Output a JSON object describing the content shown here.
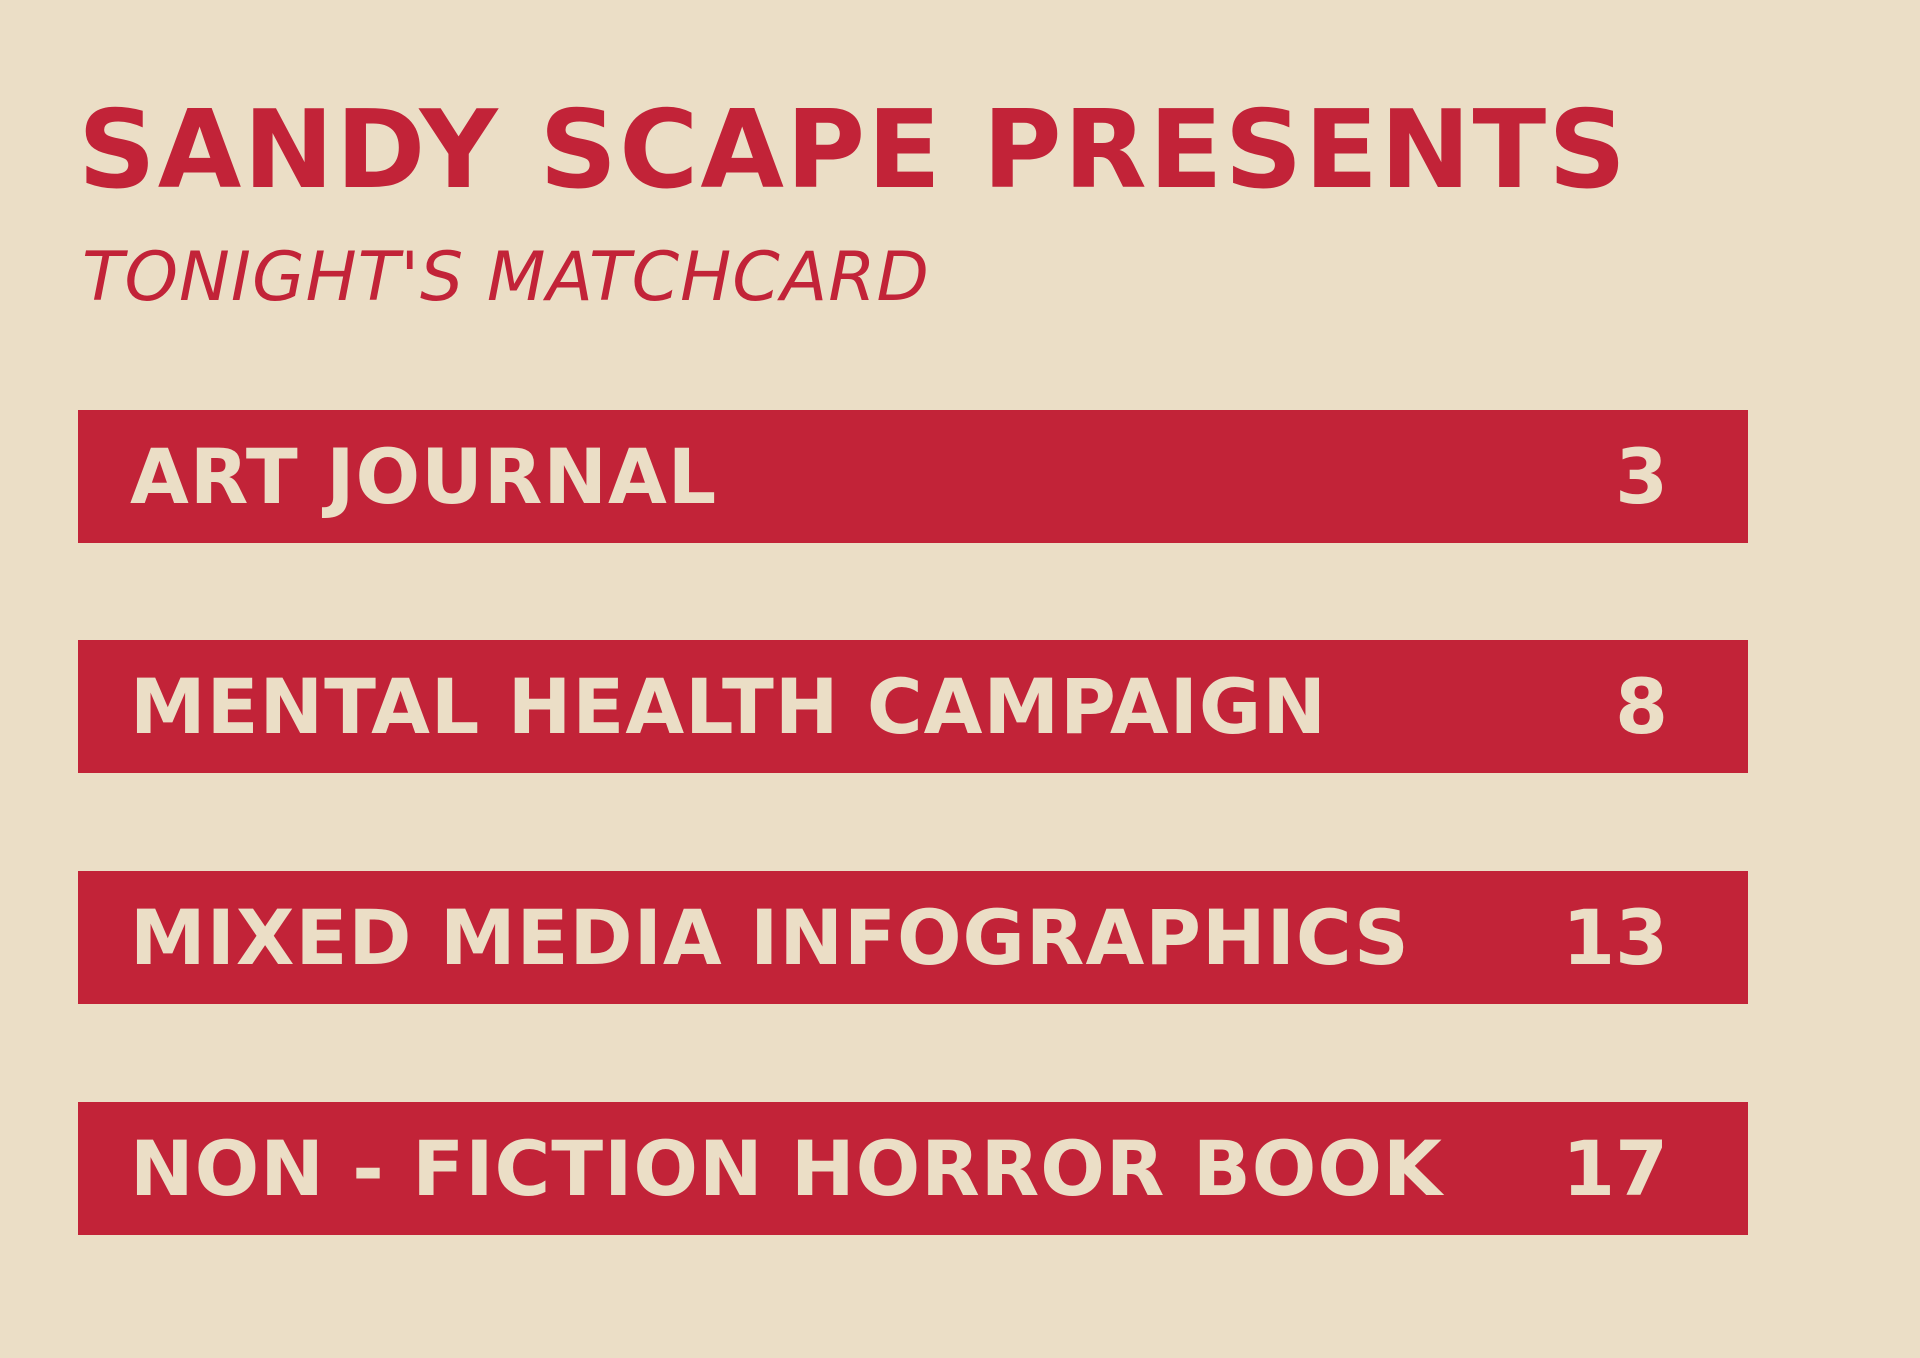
{
  "header": {
    "title": "SANDY SCAPE PRESENTS",
    "subtitle": "TONIGHT'S MATCHCARD"
  },
  "matches": [
    {
      "title": "ART JOURNAL",
      "number": "3"
    },
    {
      "title": "MENTAL HEALTH CAMPAIGN",
      "number": "8"
    },
    {
      "title": "MIXED MEDIA INFOGRAPHICS",
      "number": "13"
    },
    {
      "title": "NON - FICTION HORROR BOOK",
      "number": "17"
    }
  ],
  "colors": {
    "background": "#EBDEC6",
    "accent": "#C22338"
  }
}
